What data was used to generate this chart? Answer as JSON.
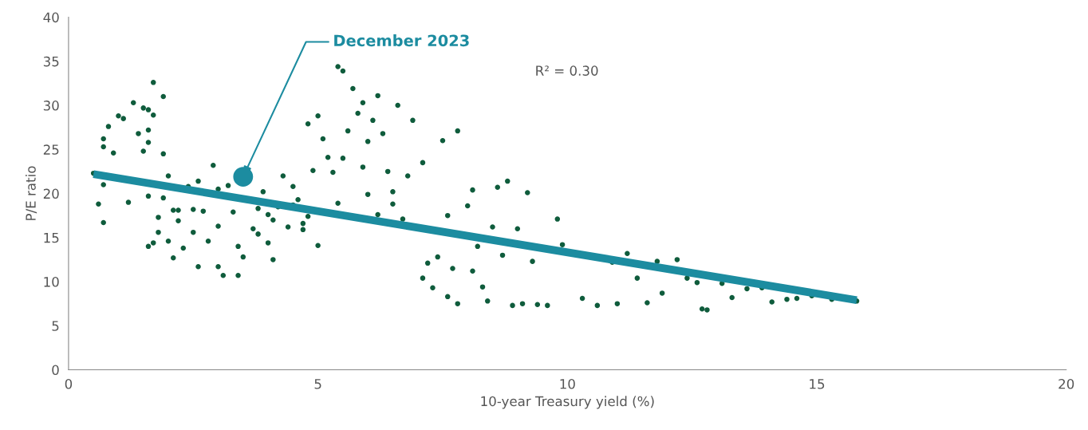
{
  "chart_data": {
    "type": "scatter",
    "xlabel": "10-year Treasury yield (%)",
    "ylabel": "P/E ratio",
    "xlim": [
      0,
      20
    ],
    "xticks": [
      0,
      5,
      10,
      15,
      20
    ],
    "ylim": [
      0,
      40
    ],
    "yticks": [
      0,
      5,
      10,
      15,
      20,
      25,
      30,
      35,
      40
    ],
    "grid": false,
    "legend": false,
    "marker": "circle",
    "annotations": [
      {
        "text": "December 2023",
        "x": 3.5,
        "y": 21.9
      },
      "R² = 0.30"
    ],
    "series": [
      {
        "color": "#0f5c3c",
        "x": [
          0.5,
          0.6,
          0.7,
          0.7,
          0.7,
          0.7,
          0.8,
          0.9,
          1.0,
          1.1,
          1.2,
          1.3,
          1.4,
          1.5,
          1.6,
          1.5,
          1.6,
          1.6,
          1.7,
          1.7,
          1.9,
          1.9,
          1.6,
          1.6,
          1.7,
          1.8,
          1.8,
          1.9,
          2.0,
          2.0,
          2.1,
          2.1,
          2.2,
          2.3,
          2.4,
          2.5,
          2.6,
          2.6,
          2.7,
          2.8,
          2.9,
          3.0,
          3.1,
          3.0,
          3.2,
          3.3,
          3.4,
          3.4,
          3.5,
          3.7,
          3.8,
          3.9,
          4.0,
          4.1,
          4.2,
          4.3,
          4.1,
          4.4,
          4.5,
          4.6,
          4.7,
          4.8,
          4.8,
          4.9,
          5.0,
          5.0,
          5.1,
          5.2,
          5.3,
          5.4,
          5.4,
          5.5,
          5.5,
          5.6,
          5.7,
          5.8,
          5.9,
          5.9,
          6.0,
          6.0,
          6.1,
          6.2,
          6.3,
          6.4,
          6.5,
          6.6,
          6.7,
          6.8,
          6.9,
          7.1,
          7.1,
          7.2,
          7.3,
          7.4,
          7.5,
          7.6,
          7.6,
          7.7,
          7.8,
          7.8,
          8.0,
          8.1,
          8.1,
          8.2,
          8.3,
          8.4,
          8.5,
          8.6,
          8.7,
          8.8,
          8.9,
          9.0,
          9.1,
          9.2,
          9.3,
          9.4,
          9.6,
          9.8,
          9.9,
          10.3,
          10.6,
          10.9,
          11.0,
          11.2,
          11.4,
          11.6,
          11.8,
          11.9,
          12.2,
          12.4,
          12.7,
          12.6,
          12.8,
          13.1,
          13.3,
          13.6,
          13.9,
          14.1,
          14.4,
          14.6,
          14.9,
          15.3,
          15.8,
          4.5,
          4.0,
          3.8,
          4.7,
          6.2,
          6.5,
          3.0,
          2.5,
          2.2
        ],
        "values": [
          22.3,
          18.8,
          16.7,
          26.2,
          25.3,
          21.0,
          27.6,
          24.6,
          28.8,
          28.5,
          19.0,
          30.3,
          26.8,
          29.7,
          29.5,
          24.8,
          25.8,
          27.2,
          28.9,
          32.6,
          31.0,
          24.5,
          19.7,
          14.0,
          14.4,
          17.3,
          15.6,
          19.5,
          22.0,
          14.6,
          12.7,
          18.1,
          16.9,
          13.8,
          20.8,
          15.6,
          11.7,
          21.4,
          18.0,
          14.6,
          23.2,
          11.7,
          10.7,
          16.3,
          20.9,
          17.9,
          10.7,
          14.0,
          12.8,
          16.0,
          15.4,
          20.2,
          14.4,
          17.0,
          18.5,
          22.0,
          12.5,
          16.2,
          20.8,
          19.3,
          15.9,
          17.4,
          27.9,
          22.6,
          28.8,
          14.1,
          26.2,
          24.1,
          22.4,
          18.9,
          34.4,
          33.9,
          24.0,
          27.1,
          31.9,
          29.1,
          30.3,
          23.0,
          25.9,
          19.9,
          28.3,
          31.1,
          26.8,
          22.5,
          20.2,
          30.0,
          17.1,
          22.0,
          28.3,
          23.5,
          10.4,
          12.1,
          9.3,
          12.8,
          26.0,
          17.5,
          8.3,
          11.5,
          27.1,
          7.5,
          18.6,
          11.2,
          20.4,
          14.0,
          9.4,
          7.8,
          16.2,
          20.7,
          13.0,
          21.4,
          7.3,
          16.0,
          7.5,
          20.1,
          12.3,
          7.4,
          7.3,
          17.1,
          14.2,
          8.1,
          7.3,
          12.2,
          7.5,
          13.2,
          10.4,
          7.6,
          12.3,
          8.7,
          12.5,
          10.4,
          6.9,
          9.9,
          6.8,
          9.8,
          8.2,
          9.2,
          9.3,
          7.7,
          8.0,
          8.1,
          8.4,
          8.0,
          7.8,
          18.7,
          17.6,
          18.3,
          16.6,
          17.6,
          18.8,
          20.5,
          18.2,
          18.1
        ]
      },
      {
        "type": "line",
        "color": "#1c8ca0",
        "marker": "none",
        "x": [
          0.5,
          15.8
        ],
        "values": [
          22.2,
          7.9
        ]
      },
      {
        "type": "bubble",
        "color": "#1c8ca0",
        "x": [
          3.5
        ],
        "values": [
          21.9
        ],
        "sizes": [
          1
        ]
      }
    ]
  }
}
